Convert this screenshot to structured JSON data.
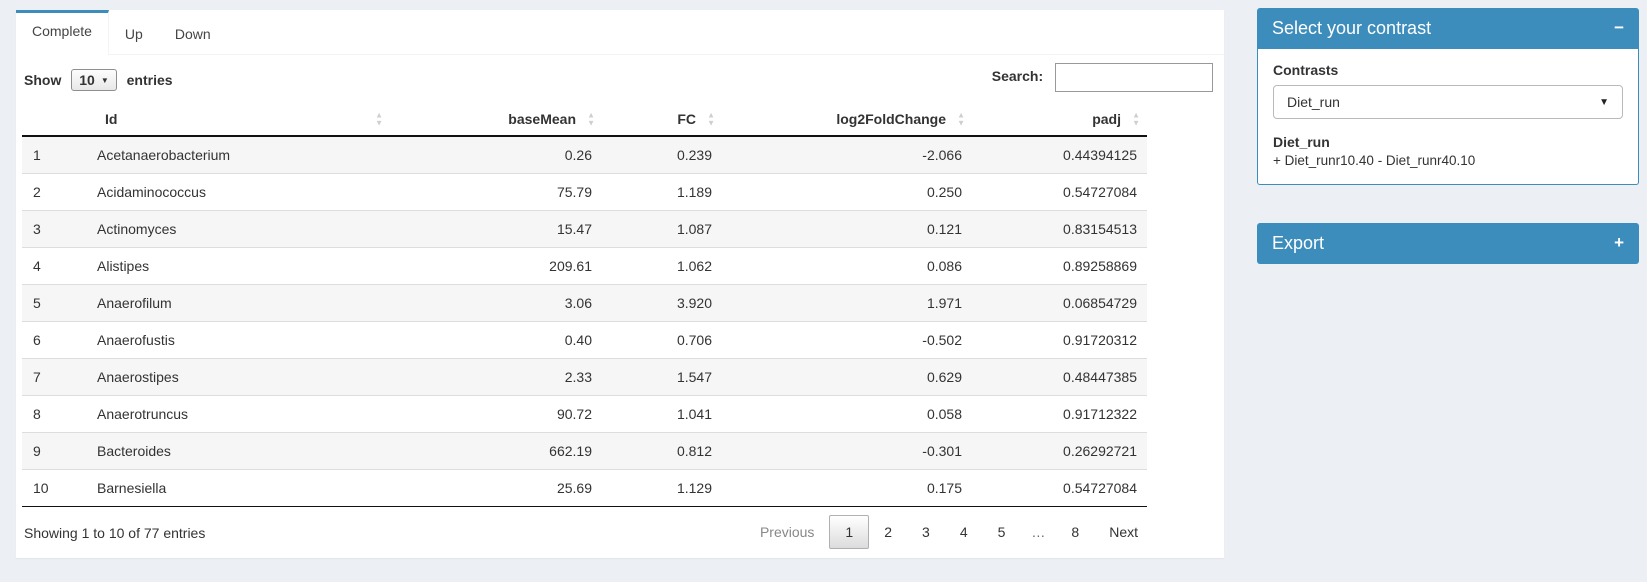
{
  "icons": {
    "sort_asc": "▲",
    "sort_desc": "▼",
    "caret_down": "▼",
    "collapse": "−",
    "expand": "+"
  },
  "colors": {
    "primary": "#3c8dbc",
    "page_bg": "#ecf0f5"
  },
  "tabs": [
    {
      "label": "Complete",
      "active": true
    },
    {
      "label": "Up",
      "active": false
    },
    {
      "label": "Down",
      "active": false
    }
  ],
  "length_control": {
    "prefix": "Show",
    "value": "10",
    "suffix": "entries"
  },
  "search": {
    "label": "Search:",
    "value": "",
    "placeholder": ""
  },
  "table": {
    "columns": [
      "Id",
      "baseMean",
      "FC",
      "log2FoldChange",
      "padj"
    ],
    "rows": [
      [
        "1",
        "Acetanaerobacterium",
        "0.26",
        "0.239",
        "-2.066",
        "0.44394125"
      ],
      [
        "2",
        "Acidaminococcus",
        "75.79",
        "1.189",
        "0.250",
        "0.54727084"
      ],
      [
        "3",
        "Actinomyces",
        "15.47",
        "1.087",
        "0.121",
        "0.83154513"
      ],
      [
        "4",
        "Alistipes",
        "209.61",
        "1.062",
        "0.086",
        "0.89258869"
      ],
      [
        "5",
        "Anaerofilum",
        "3.06",
        "3.920",
        "1.971",
        "0.06854729"
      ],
      [
        "6",
        "Anaerofustis",
        "0.40",
        "0.706",
        "-0.502",
        "0.91720312"
      ],
      [
        "7",
        "Anaerostipes",
        "2.33",
        "1.547",
        "0.629",
        "0.48447385"
      ],
      [
        "8",
        "Anaerotruncus",
        "90.72",
        "1.041",
        "0.058",
        "0.91712322"
      ],
      [
        "9",
        "Bacteroides",
        "662.19",
        "0.812",
        "-0.301",
        "0.26292721"
      ],
      [
        "10",
        "Barnesiella",
        "25.69",
        "1.129",
        "0.175",
        "0.54727084"
      ]
    ]
  },
  "footer": {
    "info": "Showing 1 to 10 of 77 entries",
    "pagination": {
      "previous": "Previous",
      "pages": [
        "1",
        "2",
        "3",
        "4",
        "5",
        "…",
        "8"
      ],
      "current": "1",
      "next": "Next"
    }
  },
  "contrast_panel": {
    "title": "Select your contrast",
    "contrasts_label": "Contrasts",
    "selected_contrast": "Diet_run",
    "contrast_name": "Diet_run",
    "contrast_formula": "+ Diet_runr10.40 - Diet_runr40.10"
  },
  "export_panel": {
    "title": "Export"
  }
}
